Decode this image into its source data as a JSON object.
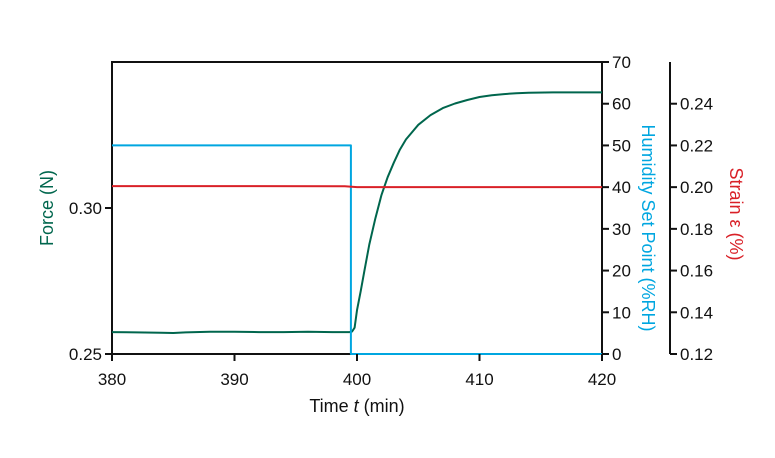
{
  "chart_data": {
    "type": "line",
    "xlabel_pre": "Time ",
    "xlabel_var": "t",
    "xlabel_post": " (min)",
    "xlim": [
      380,
      420
    ],
    "x_ticks": [
      380,
      390,
      400,
      410,
      420
    ],
    "axes": {
      "force": {
        "label": "Force (N)",
        "ylim": [
          0.25,
          0.35
        ],
        "ticks": [
          "0.25",
          "0.30"
        ],
        "tick_values": [
          0.25,
          0.3
        ],
        "color": "#00664d"
      },
      "humidity": {
        "label": "Humidity Set Point (%RH)",
        "ylim": [
          0,
          70
        ],
        "ticks": [
          "0",
          "10",
          "20",
          "30",
          "40",
          "50",
          "60",
          "70"
        ],
        "tick_values": [
          0,
          10,
          20,
          30,
          40,
          50,
          60,
          70
        ],
        "color": "#00a6e0"
      },
      "strain": {
        "label": "Strain ε (%)",
        "ylim": [
          0.12,
          0.26
        ],
        "ticks": [
          "0.12",
          "0.14",
          "0.16",
          "0.18",
          "0.20",
          "0.22",
          "0.24"
        ],
        "tick_values": [
          0.12,
          0.14,
          0.16,
          0.18,
          0.2,
          0.22,
          0.24
        ],
        "color": "#d92027"
      }
    },
    "series": [
      {
        "axis": "force",
        "color": "#00664d",
        "x": [
          380,
          382,
          384,
          385,
          386,
          388,
          390,
          392,
          394,
          396,
          398,
          399.4,
          399.6,
          399.8,
          400,
          400.3,
          400.6,
          401,
          401.5,
          402,
          402.5,
          403,
          403.5,
          404,
          405,
          406,
          407,
          408,
          409,
          410,
          411,
          412,
          413,
          414,
          416,
          418,
          420
        ],
        "y": [
          0.2575,
          0.2574,
          0.2573,
          0.2572,
          0.2574,
          0.2576,
          0.2576,
          0.2575,
          0.2575,
          0.2576,
          0.2575,
          0.2575,
          0.2577,
          0.259,
          0.265,
          0.2715,
          0.2785,
          0.2875,
          0.2965,
          0.3045,
          0.3105,
          0.3155,
          0.32,
          0.3235,
          0.3285,
          0.3318,
          0.3342,
          0.3358,
          0.337,
          0.338,
          0.3386,
          0.339,
          0.3393,
          0.3395,
          0.3396,
          0.3396,
          0.3396
        ]
      },
      {
        "axis": "humidity",
        "color": "#00a6e0",
        "x": [
          380,
          399.5,
          399.5,
          420
        ],
        "y": [
          50,
          50,
          0,
          0
        ]
      },
      {
        "axis": "strain",
        "color": "#d92027",
        "x": [
          380,
          390,
          399,
          400,
          402,
          410,
          420
        ],
        "y": [
          0.2005,
          0.2005,
          0.2004,
          0.2,
          0.2,
          0.2,
          0.2
        ]
      }
    ]
  }
}
